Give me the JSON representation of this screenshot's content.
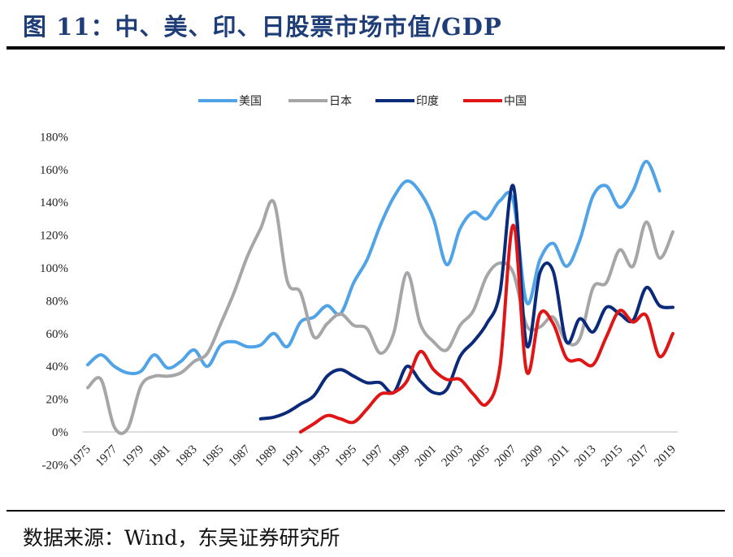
{
  "header": {
    "title": "图 11：中、美、印、日股票市场市值/GDP"
  },
  "footer": {
    "source": "数据来源：Wind，东吴证券研究所"
  },
  "chart_data": {
    "type": "line",
    "title": "",
    "xlabel": "",
    "ylabel": "",
    "ylim": [
      -0.2,
      1.8
    ],
    "yticks": [
      "-20%",
      "0%",
      "20%",
      "40%",
      "60%",
      "80%",
      "100%",
      "120%",
      "140%",
      "160%",
      "180%"
    ],
    "xticks": [
      "1975",
      "1977",
      "1979",
      "1981",
      "1983",
      "1985",
      "1987",
      "1989",
      "1991",
      "1993",
      "1995",
      "1997",
      "1999",
      "2001",
      "2003",
      "2005",
      "2007",
      "2009",
      "2011",
      "2013",
      "2015",
      "2017",
      "2019"
    ],
    "xlim": [
      1975,
      2019
    ],
    "grid": false,
    "legend_position": "top",
    "series": [
      {
        "name": "美国",
        "color": "#4fa3e6",
        "start": 1975,
        "values": [
          41,
          47,
          40,
          36,
          37,
          47,
          39,
          43,
          50,
          40,
          53,
          55,
          52,
          53,
          60,
          52,
          67,
          70,
          77,
          72,
          91,
          105,
          126,
          143,
          153,
          146,
          130,
          102,
          124,
          134,
          130,
          141,
          141,
          79,
          105,
          115,
          101,
          117,
          144,
          150,
          137,
          147,
          165,
          147
        ]
      },
      {
        "name": "日本",
        "color": "#a6a6a8",
        "start": 1975,
        "values": [
          27,
          32,
          3,
          2,
          28,
          34,
          34,
          36,
          43,
          48,
          66,
          85,
          107,
          124,
          140,
          92,
          85,
          58,
          66,
          72,
          65,
          63,
          48,
          60,
          97,
          66,
          55,
          50,
          65,
          74,
          95,
          103,
          97,
          65,
          64,
          70,
          55,
          57,
          88,
          91,
          111,
          101,
          128,
          106,
          122
        ]
      },
      {
        "name": "印度",
        "color": "#0b2a7a",
        "start": 1988,
        "values": [
          8,
          9,
          12,
          17,
          22,
          34,
          38,
          34,
          30,
          30,
          24,
          40,
          31,
          24,
          26,
          46,
          55,
          66,
          85,
          150,
          53,
          97,
          98,
          55,
          69,
          61,
          76,
          72,
          68,
          88,
          77,
          76
        ]
      },
      {
        "name": "中国",
        "color": "#e01515",
        "start": 1991,
        "values": [
          0,
          5,
          10,
          8,
          6,
          14,
          23,
          24,
          31,
          49,
          38,
          32,
          32,
          23,
          17,
          40,
          126,
          37,
          72,
          66,
          45,
          44,
          41,
          58,
          74,
          67,
          71,
          46,
          60
        ]
      }
    ]
  }
}
